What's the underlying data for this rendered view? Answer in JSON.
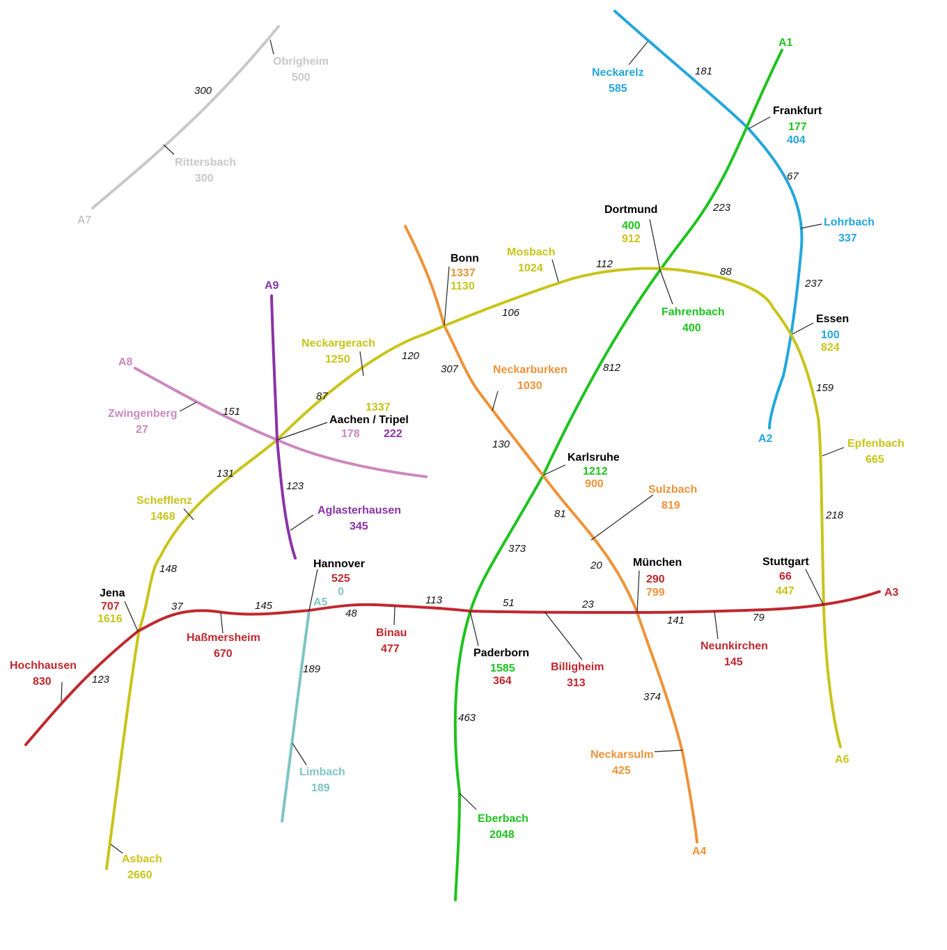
{
  "colors": {
    "A1": "#1ec31e",
    "A2": "#23a6dc",
    "A3": "#c0272d",
    "A4": "#ef9238",
    "A5": "#7ec4c4",
    "A6": "#c8c419",
    "A7": "#c8c8c8",
    "A8": "#cb88be",
    "A9": "#8a32a6",
    "junction": "#000000"
  },
  "lines": {
    "A1": "A1",
    "A2": "A2",
    "A3": "A3",
    "A4": "A4",
    "A5": "A5",
    "A6": "A6",
    "A7": "A7",
    "A8": "A8",
    "A9": "A9"
  },
  "stations": {
    "obrigheim": {
      "name": "Obrigheim",
      "values": [
        "500"
      ]
    },
    "rittersbach": {
      "name": "Rittersbach",
      "values": [
        "300"
      ]
    },
    "neckarelz": {
      "name": "Neckarelz",
      "values": [
        "585"
      ]
    },
    "frankfurt": {
      "name": "Frankfurt",
      "values": [
        "177",
        "404"
      ]
    },
    "dortmund": {
      "name": "Dortmund",
      "values": [
        "400",
        "912"
      ]
    },
    "lohrbach": {
      "name": "Lohrbach",
      "values": [
        "337"
      ]
    },
    "bonn": {
      "name": "Bonn",
      "values": [
        "1337",
        "1130"
      ]
    },
    "mosbach": {
      "name": "Mosbach",
      "values": [
        "1024"
      ]
    },
    "fahrenbach": {
      "name": "Fahrenbach",
      "values": [
        "400"
      ]
    },
    "essen": {
      "name": "Essen",
      "values": [
        "100",
        "824"
      ]
    },
    "neckargerach": {
      "name": "Neckargerach",
      "values": [
        "1250"
      ]
    },
    "neckarburken": {
      "name": "Neckarburken",
      "values": [
        "1030"
      ]
    },
    "zwingenberg": {
      "name": "Zwingenberg",
      "values": [
        "27"
      ]
    },
    "aachen": {
      "name": "Aachen / Tripel",
      "values": [
        "1337",
        "178",
        "222"
      ]
    },
    "epfenbach": {
      "name": "Epfenbach",
      "values": [
        "665"
      ]
    },
    "karlsruhe": {
      "name": "Karlsruhe",
      "values": [
        "1212",
        "900"
      ]
    },
    "sulzbach": {
      "name": "Sulzbach",
      "values": [
        "819"
      ]
    },
    "schefflenz": {
      "name": "Schefflenz",
      "values": [
        "1468"
      ]
    },
    "aglasterhausen": {
      "name": "Aglasterhausen",
      "values": [
        "345"
      ]
    },
    "hannover": {
      "name": "Hannover",
      "values": [
        "525",
        "0"
      ]
    },
    "muenchen": {
      "name": "München",
      "values": [
        "290",
        "799"
      ]
    },
    "stuttgart": {
      "name": "Stuttgart",
      "values": [
        "66",
        "447"
      ]
    },
    "jena": {
      "name": "Jena",
      "values": [
        "707",
        "1616"
      ]
    },
    "hassmersheim": {
      "name": "Haßmersheim",
      "values": [
        "670"
      ]
    },
    "binau": {
      "name": "Binau",
      "values": [
        "477"
      ]
    },
    "paderborn": {
      "name": "Paderborn",
      "values": [
        "1585",
        "364"
      ]
    },
    "billigheim": {
      "name": "Billigheim",
      "values": [
        "313"
      ]
    },
    "neunkirchen": {
      "name": "Neunkirchen",
      "values": [
        "145"
      ]
    },
    "hochhausen": {
      "name": "Hochhausen",
      "values": [
        "830"
      ]
    },
    "limbach": {
      "name": "Limbach",
      "values": [
        "189"
      ]
    },
    "neckarsulm": {
      "name": "Neckarsulm",
      "values": [
        "425"
      ]
    },
    "eberbach": {
      "name": "Eberbach",
      "values": [
        "2048"
      ]
    },
    "asbach": {
      "name": "Asbach",
      "values": [
        "2660"
      ]
    }
  },
  "distances": {
    "d300": "300",
    "d181": "181",
    "d67": "67",
    "d223": "223",
    "d112": "112",
    "d88": "88",
    "d237": "237",
    "d106": "106",
    "d120": "120",
    "d307": "307",
    "d812": "812",
    "d87": "87",
    "d151": "151",
    "d159": "159",
    "d130": "130",
    "d131": "131",
    "d123a9": "123",
    "d81": "81",
    "d218": "218",
    "d373": "373",
    "d148": "148",
    "d20": "20",
    "d113": "113",
    "d51": "51",
    "d23": "23",
    "d37": "37",
    "d145": "145",
    "d48": "48",
    "d141": "141",
    "d79": "79",
    "d189": "189",
    "d123a3": "123",
    "d374": "374",
    "d463": "463"
  }
}
